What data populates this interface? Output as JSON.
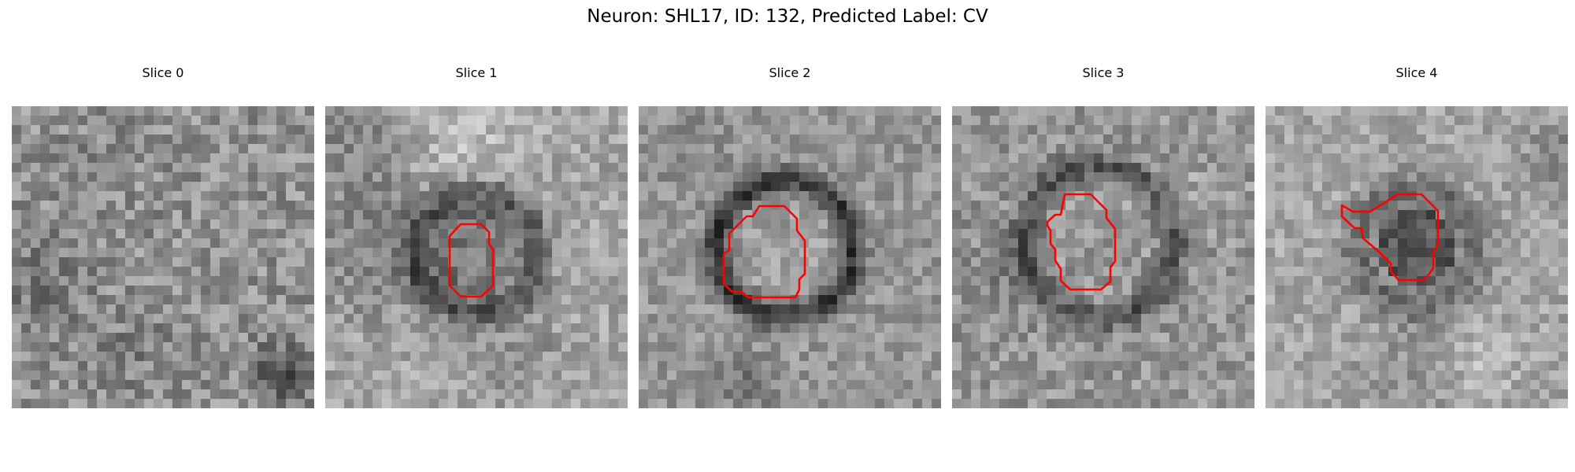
{
  "figure": {
    "title": "Neuron: SHL17, ID: 132, Predicted Label: CV"
  },
  "panels": [
    {
      "title": "Slice 0",
      "has_contour": false
    },
    {
      "title": "Slice 1",
      "has_contour": true
    },
    {
      "title": "Slice 2",
      "has_contour": true
    },
    {
      "title": "Slice 3",
      "has_contour": true
    },
    {
      "title": "Slice 4",
      "has_contour": true
    }
  ],
  "colors": {
    "contour": "#ff0000",
    "colormap": "grayscale"
  }
}
